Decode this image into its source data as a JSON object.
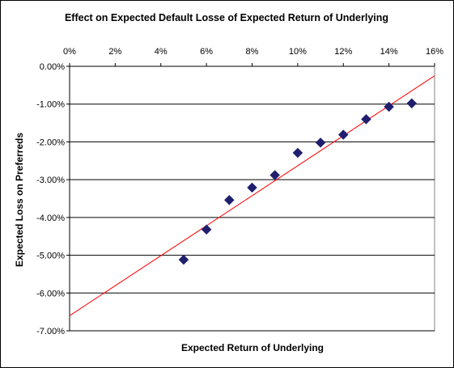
{
  "chart_data": {
    "type": "scatter",
    "title": "Effect on Expected Default Losse of Expected Return of Underlying",
    "xlabel": "Expected Return of Underlying",
    "ylabel": "Expected Loss on Preferreds",
    "x_tick_labels": [
      "0%",
      "2%",
      "4%",
      "6%",
      "8%",
      "10%",
      "12%",
      "14%",
      "16%"
    ],
    "y_tick_labels": [
      "0.00%",
      "-1.00%",
      "-2.00%",
      "-3.00%",
      "-4.00%",
      "-5.00%",
      "-6.00%",
      "-7.00%"
    ],
    "xlim": [
      0,
      16
    ],
    "ylim": [
      -7,
      0
    ],
    "x_axis_position": "top",
    "grid": "horizontal",
    "legend": "none",
    "points": [
      {
        "x": 5,
        "y": -5.12
      },
      {
        "x": 6,
        "y": -4.32
      },
      {
        "x": 7,
        "y": -3.54
      },
      {
        "x": 8,
        "y": -3.21
      },
      {
        "x": 9,
        "y": -2.88
      },
      {
        "x": 10,
        "y": -2.29
      },
      {
        "x": 11,
        "y": -2.02
      },
      {
        "x": 12,
        "y": -1.81
      },
      {
        "x": 13,
        "y": -1.4
      },
      {
        "x": 14,
        "y": -1.07
      },
      {
        "x": 15,
        "y": -0.98
      }
    ],
    "trendline": {
      "type": "linear",
      "from": {
        "x": 0,
        "y": -6.6
      },
      "to": {
        "x": 16,
        "y": -0.25
      }
    },
    "colors": {
      "marker": "#1f1f6e",
      "trendline": "#ff0000",
      "grid": "#000000"
    }
  }
}
